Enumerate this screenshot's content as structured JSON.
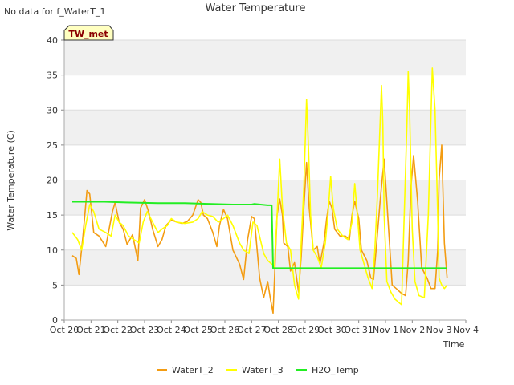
{
  "note": "No data for f_WaterT_1",
  "station_badge": "TW_met",
  "chart_data": {
    "type": "line",
    "title": "Water Temperature",
    "xlabel": "Time",
    "ylabel": "Water Temperature (C)",
    "ylim": [
      0,
      40
    ],
    "xlim": [
      0,
      15
    ],
    "x_tick_labels": [
      "Oct 20",
      "Oct 21",
      "Oct 22",
      "Oct 23",
      "Oct 24",
      "Oct 25",
      "Oct 26",
      "Oct 27",
      "Oct 28",
      "Oct 29",
      "Oct 30",
      "Oct 31",
      "Nov 1",
      "Nov 2",
      "Nov 3",
      "Nov 4"
    ],
    "y_ticks": [
      0,
      5,
      10,
      15,
      20,
      25,
      30,
      35,
      40
    ],
    "grid": true,
    "legend_position": "bottom",
    "series": [
      {
        "name": "WaterT_2",
        "color": "#f39c12",
        "x": [
          0.3,
          0.45,
          0.55,
          0.7,
          0.85,
          0.95,
          1.1,
          1.3,
          1.55,
          1.8,
          1.9,
          2.05,
          2.2,
          2.35,
          2.55,
          2.75,
          2.85,
          3.0,
          3.15,
          3.3,
          3.5,
          3.65,
          3.8,
          4.0,
          4.2,
          4.4,
          4.6,
          4.8,
          5.0,
          5.1,
          5.2,
          5.35,
          5.55,
          5.7,
          5.8,
          5.95,
          6.1,
          6.3,
          6.55,
          6.7,
          6.85,
          7.0,
          7.1,
          7.3,
          7.45,
          7.6,
          7.7,
          7.8,
          7.95,
          8.05,
          8.15,
          8.2,
          8.35,
          8.45,
          8.6,
          8.75,
          8.85,
          8.95,
          9.05,
          9.15,
          9.3,
          9.45,
          9.55,
          9.7,
          9.8,
          9.9,
          10.0,
          10.1,
          10.3,
          10.5,
          10.65,
          10.75,
          10.85,
          11.0,
          11.1,
          11.3,
          11.45,
          11.55,
          11.65,
          11.8,
          11.95,
          12.1,
          12.25,
          12.4,
          12.6,
          12.75,
          12.85,
          12.95,
          13.05,
          13.2,
          13.35,
          13.55,
          13.7,
          13.85,
          13.95,
          14.0,
          14.1,
          14.2,
          14.3
        ],
        "y": [
          9.2,
          8.8,
          6.5,
          12.0,
          18.5,
          18.0,
          12.5,
          12.0,
          10.5,
          15.5,
          16.8,
          14.0,
          13.0,
          10.8,
          12.2,
          8.5,
          16.0,
          17.2,
          15.5,
          13.0,
          10.5,
          11.5,
          13.5,
          14.3,
          14.0,
          13.8,
          14.1,
          15.0,
          17.2,
          16.8,
          15.0,
          14.5,
          12.5,
          10.5,
          13.5,
          15.8,
          14.5,
          10.0,
          8.0,
          5.8,
          11.5,
          14.8,
          14.5,
          6.0,
          3.2,
          5.5,
          3.0,
          1.0,
          15.0,
          17.3,
          15.0,
          11.0,
          10.5,
          7.0,
          8.2,
          4.0,
          9.0,
          16.0,
          22.5,
          16.0,
          10.0,
          10.5,
          8.0,
          11.0,
          14.5,
          17.0,
          16.0,
          13.0,
          12.0,
          12.0,
          11.5,
          15.0,
          17.0,
          14.5,
          10.0,
          8.5,
          6.0,
          5.8,
          10.0,
          17.0,
          23.0,
          14.0,
          5.0,
          4.5,
          3.8,
          3.5,
          8.5,
          19.0,
          23.5,
          17.0,
          7.5,
          6.0,
          4.5,
          4.5,
          10.0,
          20.0,
          25.0,
          11.0,
          6.0
        ]
      },
      {
        "name": "WaterT_3",
        "color": "#ffff00",
        "x": [
          0.3,
          0.5,
          0.65,
          0.8,
          0.95,
          1.1,
          1.3,
          1.55,
          1.75,
          1.9,
          2.05,
          2.2,
          2.4,
          2.6,
          2.8,
          2.95,
          3.1,
          3.3,
          3.5,
          3.65,
          3.85,
          4.0,
          4.2,
          4.5,
          4.8,
          5.0,
          5.15,
          5.35,
          5.55,
          5.75,
          5.95,
          6.1,
          6.3,
          6.55,
          6.7,
          6.9,
          7.05,
          7.2,
          7.45,
          7.6,
          7.75,
          7.85,
          7.95,
          8.05,
          8.15,
          8.3,
          8.45,
          8.6,
          8.75,
          8.85,
          8.95,
          9.05,
          9.12,
          9.2,
          9.3,
          9.45,
          9.6,
          9.75,
          9.85,
          9.95,
          10.05,
          10.2,
          10.4,
          10.6,
          10.75,
          10.85,
          10.95,
          11.05,
          11.2,
          11.35,
          11.5,
          11.6,
          11.7,
          11.85,
          11.9,
          11.95,
          12.05,
          12.2,
          12.35,
          12.5,
          12.6,
          12.7,
          12.8,
          12.85,
          12.9,
          13.0,
          13.1,
          13.25,
          13.45,
          13.6,
          13.75,
          13.85,
          13.95,
          14.0,
          14.1,
          14.2,
          14.3
        ],
        "y": [
          12.5,
          11.5,
          10.0,
          13.5,
          16.5,
          15.5,
          13.0,
          12.5,
          12.0,
          15.0,
          14.0,
          13.5,
          12.0,
          11.5,
          11.0,
          14.0,
          15.5,
          14.0,
          12.5,
          13.0,
          13.5,
          14.5,
          14.0,
          13.8,
          14.0,
          14.5,
          15.5,
          15.0,
          14.8,
          14.0,
          14.5,
          15.0,
          13.5,
          11.0,
          10.0,
          9.5,
          14.0,
          13.5,
          9.5,
          8.5,
          8.0,
          7.5,
          15.0,
          23.0,
          16.0,
          11.0,
          10.0,
          5.0,
          3.0,
          11.0,
          19.0,
          31.5,
          25.0,
          15.0,
          10.0,
          9.0,
          7.5,
          11.0,
          15.0,
          20.5,
          16.0,
          13.0,
          12.0,
          11.5,
          14.0,
          19.5,
          15.0,
          10.0,
          8.0,
          6.0,
          4.5,
          10.0,
          18.0,
          33.5,
          28.0,
          15.0,
          5.5,
          4.0,
          3.0,
          2.5,
          2.2,
          15.0,
          28.0,
          35.5,
          30.0,
          13.0,
          5.5,
          3.5,
          3.2,
          15.0,
          36.0,
          30.0,
          15.0,
          6.0,
          5.0,
          4.5,
          5.0
        ]
      },
      {
        "name": "H2O_Temp",
        "color": "#22ee22",
        "x": [
          0.3,
          1.0,
          1.5,
          2.3,
          3.5,
          4.5,
          5.5,
          6.3,
          7.0,
          7.1,
          7.6,
          7.75,
          7.8,
          8.5,
          10.0,
          12.0,
          14.3
        ],
        "y": [
          16.9,
          16.9,
          16.9,
          16.8,
          16.7,
          16.7,
          16.6,
          16.5,
          16.5,
          16.6,
          16.4,
          16.4,
          7.4,
          7.4,
          7.4,
          7.4,
          7.4
        ]
      }
    ]
  }
}
